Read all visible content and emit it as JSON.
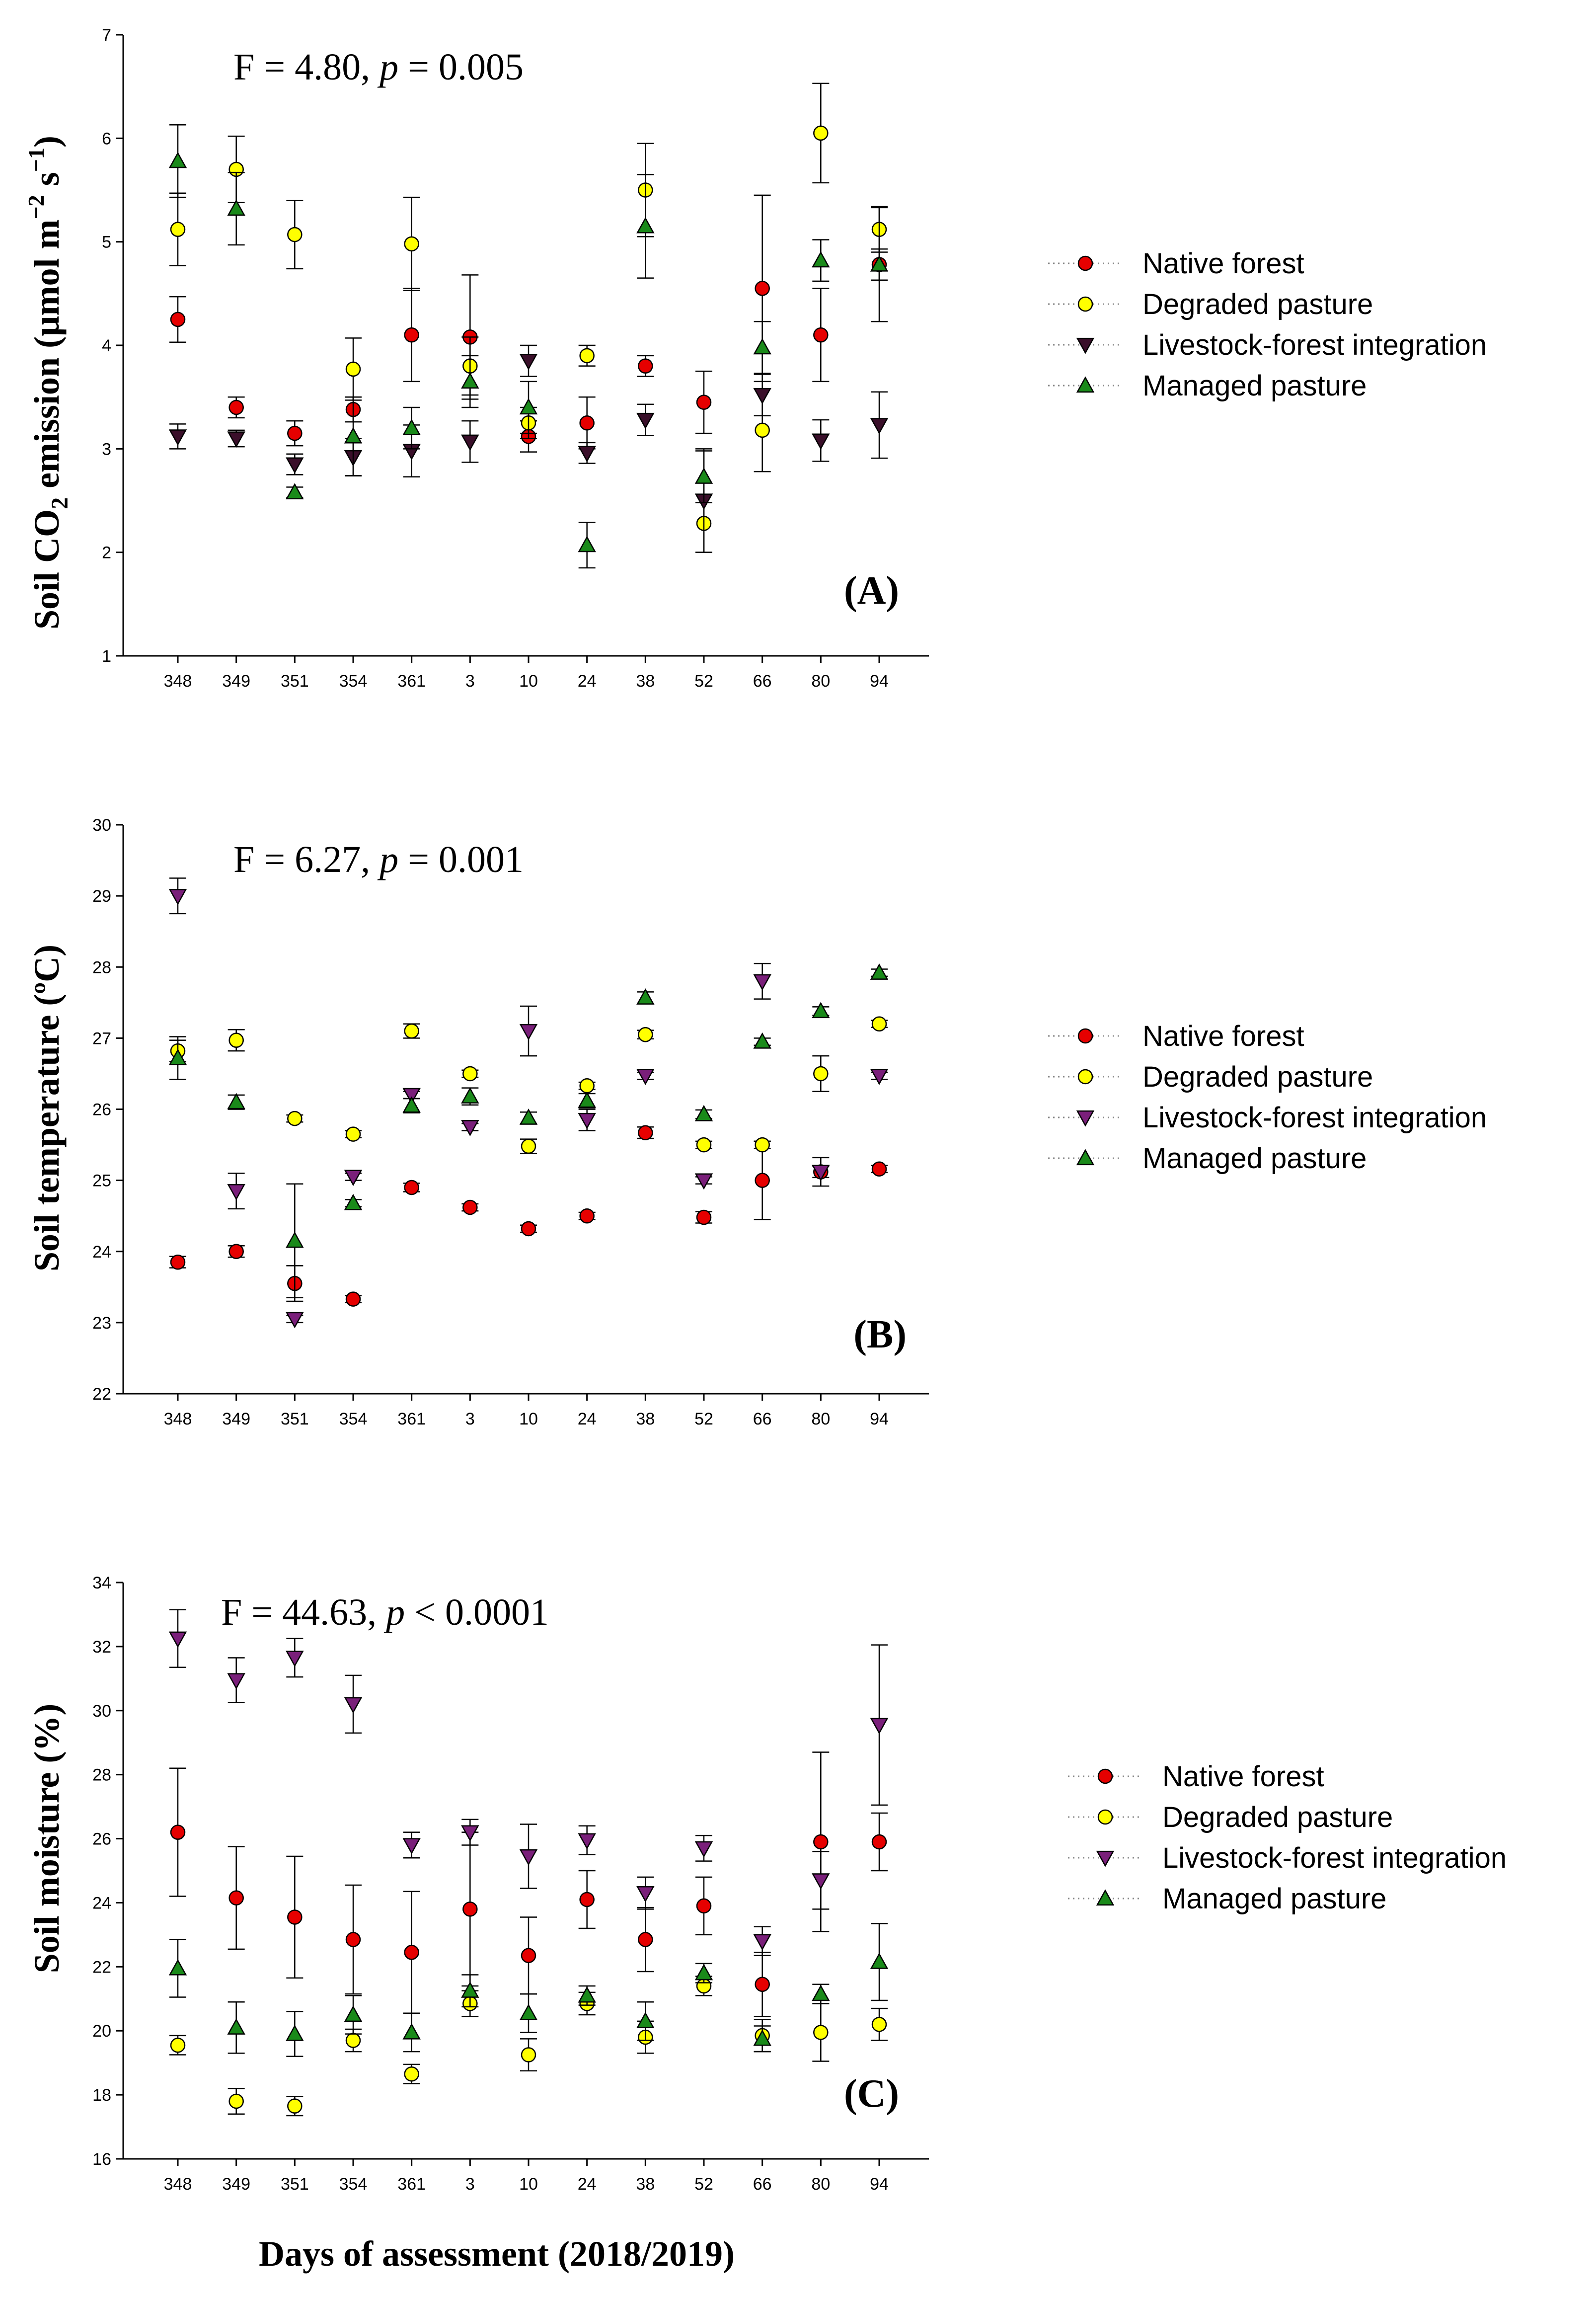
{
  "figure": {
    "xlabel": "Days of assessment (2018/2019)"
  },
  "legend": {
    "items": [
      {
        "name": "Native forest",
        "marker": "circle",
        "color": "#e60000"
      },
      {
        "name": "Degraded pasture",
        "marker": "circle",
        "color": "#ffff00"
      },
      {
        "name": "Livestock-forest integration",
        "marker": "triangle-down",
        "color": "#3a0f2a"
      },
      {
        "name": "Managed pasture",
        "marker": "triangle-up",
        "color": "#1a8a1a"
      }
    ]
  },
  "chart_data": [
    {
      "type": "scatter",
      "panel": "A",
      "panel_label": "(A)",
      "stat_text": "F = 4.80, ",
      "stat_p_label": "p",
      "stat_p_value": " = 0.005",
      "ylabel_prefix": "Soil CO",
      "ylabel_sub": "2",
      "ylabel_suffix": " emission (µmol m",
      "ylabel_sup1": "−2",
      "ylabel_mid": " s",
      "ylabel_sup2": "−1",
      "ylabel_end": ")",
      "ylim": [
        1,
        7
      ],
      "yticks": [
        1,
        2,
        3,
        4,
        5,
        6,
        7
      ],
      "categories": [
        "348",
        "349",
        "351",
        "354",
        "361",
        "3",
        "10",
        "24",
        "38",
        "52",
        "66",
        "80",
        "94"
      ],
      "series": [
        {
          "name": "Native forest",
          "values": [
            4.25,
            3.4,
            3.15,
            3.38,
            4.1,
            4.08,
            3.12,
            3.25,
            3.8,
            3.45,
            4.55,
            4.1,
            4.78
          ],
          "errors": [
            0.22,
            0.1,
            0.12,
            0.12,
            0.45,
            0.6,
            0.15,
            0.25,
            0.1,
            0.3,
            0.9,
            0.45,
            0.15
          ]
        },
        {
          "name": "Degraded pasture",
          "values": [
            5.12,
            5.7,
            5.07,
            3.77,
            4.98,
            3.8,
            3.25,
            3.9,
            5.5,
            2.28,
            3.18,
            6.05,
            5.12
          ],
          "errors": [
            0.35,
            0.32,
            0.33,
            0.3,
            0.45,
            0.28,
            0.15,
            0.1,
            0.45,
            0.28,
            0.4,
            0.48,
            0.22
          ]
        },
        {
          "name": "Livestock-forest integration",
          "values": [
            3.12,
            3.1,
            2.85,
            2.92,
            2.98,
            3.07,
            3.85,
            2.96,
            3.28,
            2.5,
            3.52,
            3.08,
            3.23
          ],
          "errors": [
            0.12,
            0.08,
            0.1,
            0.18,
            0.25,
            0.2,
            0.15,
            0.1,
            0.15,
            0.5,
            0.2,
            0.2,
            0.32
          ]
        },
        {
          "name": "Managed pasture",
          "values": [
            5.78,
            5.32,
            2.58,
            3.12,
            3.2,
            3.65,
            3.4,
            2.07,
            5.15,
            2.73,
            3.98,
            4.82,
            4.78
          ],
          "errors": [
            0.35,
            0.35,
            0.05,
            0.38,
            0.2,
            0.25,
            0.25,
            0.22,
            0.5,
            0.25,
            0.25,
            0.2,
            0.55
          ]
        }
      ]
    },
    {
      "type": "scatter",
      "panel": "B",
      "panel_label": "(B)",
      "stat_text": "F = 6.27, ",
      "stat_p_label": "p",
      "stat_p_value": " = 0.001",
      "ylabel": "Soil temperature (ºC)",
      "ylim": [
        22,
        30
      ],
      "yticks": [
        22,
        23,
        24,
        25,
        26,
        27,
        28,
        29,
        30
      ],
      "categories": [
        "348",
        "349",
        "351",
        "354",
        "361",
        "3",
        "10",
        "24",
        "38",
        "52",
        "66",
        "80",
        "94"
      ],
      "series": [
        {
          "name": "Native forest",
          "values": [
            23.85,
            24.0,
            23.55,
            23.33,
            24.9,
            24.62,
            24.32,
            24.5,
            25.67,
            24.48,
            25.0,
            25.12,
            25.16
          ],
          "errors": [
            0.08,
            0.08,
            0.25,
            0.05,
            0.06,
            0.05,
            0.05,
            0.05,
            0.08,
            0.08,
            0.55,
            0.08,
            0.05
          ]
        },
        {
          "name": "Degraded pasture",
          "values": [
            26.82,
            26.97,
            25.87,
            25.65,
            27.1,
            26.5,
            25.48,
            26.33,
            27.05,
            25.5,
            25.5,
            26.5,
            27.2
          ],
          "errors": [
            0.15,
            0.15,
            0.05,
            0.05,
            0.1,
            0.05,
            0.1,
            0.05,
            0.06,
            0.05,
            0.05,
            0.25,
            0.05
          ]
        },
        {
          "name": "Livestock-forest integration",
          "values": [
            29.0,
            24.85,
            23.05,
            25.05,
            26.2,
            25.75,
            27.1,
            25.85,
            26.47,
            25.0,
            27.8,
            25.12,
            26.47
          ],
          "errors": [
            0.25,
            0.25,
            0.05,
            0.05,
            0.05,
            0.05,
            0.35,
            0.15,
            0.05,
            0.05,
            0.25,
            0.2,
            0.05
          ]
        },
        {
          "name": "Managed pasture",
          "values": [
            26.72,
            26.1,
            24.15,
            24.68,
            26.05,
            26.18,
            25.88,
            26.12,
            27.57,
            25.93,
            26.95,
            27.38,
            27.92
          ],
          "errors": [
            0.3,
            0.1,
            0.8,
            0.05,
            0.1,
            0.12,
            0.08,
            0.1,
            0.08,
            0.06,
            0.05,
            0.06,
            0.05
          ]
        }
      ]
    },
    {
      "type": "scatter",
      "panel": "C",
      "panel_label": "(C)",
      "stat_text": "F = 44.63, ",
      "stat_p_label": "p",
      "stat_p_value": " < 0.0001",
      "ylabel": "Soil moisture (%)",
      "ylim": [
        16,
        34
      ],
      "yticks": [
        16,
        18,
        20,
        22,
        24,
        26,
        28,
        30,
        32,
        34
      ],
      "categories": [
        "348",
        "349",
        "351",
        "354",
        "361",
        "3",
        "10",
        "24",
        "38",
        "52",
        "66",
        "80",
        "94"
      ],
      "series": [
        {
          "name": "Native forest",
          "values": [
            26.2,
            24.15,
            23.55,
            22.85,
            22.45,
            23.8,
            22.35,
            24.1,
            22.85,
            23.9,
            21.45,
            25.9,
            25.9
          ],
          "errors": [
            2.0,
            1.6,
            1.9,
            1.7,
            1.9,
            2.4,
            1.2,
            0.9,
            1.0,
            0.9,
            1.0,
            2.8,
            0.9
          ]
        },
        {
          "name": "Degraded pasture",
          "values": [
            19.55,
            17.8,
            17.65,
            19.7,
            18.65,
            20.85,
            19.25,
            20.85,
            19.8,
            21.4,
            19.85,
            19.95,
            20.2
          ],
          "errors": [
            0.3,
            0.4,
            0.3,
            0.35,
            0.3,
            0.4,
            0.5,
            0.35,
            0.5,
            0.3,
            0.5,
            0.9,
            0.5
          ]
        },
        {
          "name": "Livestock-forest integration",
          "values": [
            32.25,
            30.95,
            31.65,
            30.2,
            25.8,
            26.2,
            25.45,
            25.95,
            24.3,
            25.7,
            22.8,
            24.7,
            29.55
          ],
          "errors": [
            0.9,
            0.7,
            0.6,
            0.9,
            0.4,
            0.4,
            1.0,
            0.45,
            0.5,
            0.4,
            0.45,
            0.9,
            2.5
          ]
        },
        {
          "name": "Managed pasture",
          "values": [
            21.95,
            20.1,
            19.9,
            20.5,
            19.95,
            21.25,
            20.55,
            21.1,
            20.3,
            21.8,
            19.75,
            21.15,
            22.15
          ],
          "errors": [
            0.9,
            0.8,
            0.7,
            0.6,
            0.6,
            0.5,
            0.6,
            0.3,
            0.6,
            0.3,
            0.4,
            0.3,
            1.2
          ]
        }
      ]
    }
  ]
}
